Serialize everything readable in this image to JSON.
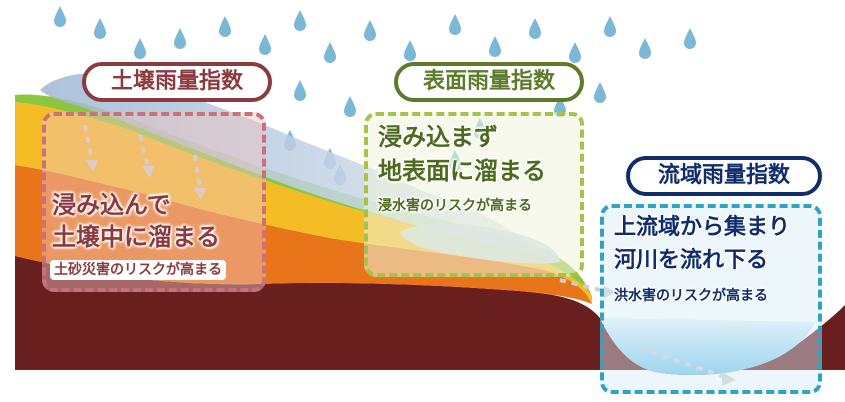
{
  "soil": {
    "title": "土壌雨量指数",
    "line1": "浸み込んで",
    "line2": "土壌中に溜まる",
    "risk": "土砂災害のリスクが高まる",
    "color": "#8b3a3f"
  },
  "surface": {
    "title": "表面雨量指数",
    "line1": "浸み込まず",
    "line2": "地表面に溜まる",
    "risk": "浸水害のリスクが高まる",
    "color": "#5e7a2a"
  },
  "basin": {
    "title": "流域雨量指数",
    "line1": "上流域から集まり",
    "line2": "河川を流れ下る",
    "risk": "洪水害のリスクが高まる",
    "color": "#0f2d6b",
    "box_color": "#2ea3c4"
  },
  "colors": {
    "bedrock": "#6a1f1f",
    "orange": "#e8751a",
    "yellow": "#f5bd25",
    "grass": "#8cc63f",
    "water": "#a8dcf3",
    "rain": "#7bb8d6"
  }
}
